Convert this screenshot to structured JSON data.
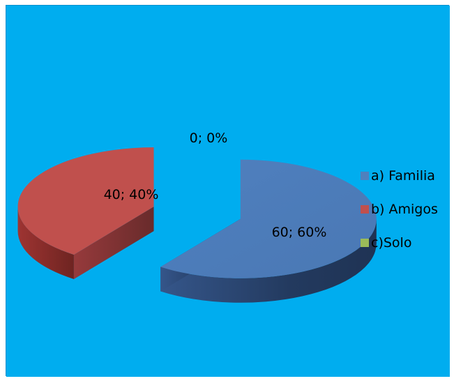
{
  "background_color": "#00adef",
  "chart_data": {
    "type": "pie",
    "style": "3d-exploded",
    "categories": [
      "a) Familia",
      "b) Amigos",
      "c)Solo"
    ],
    "values": [
      60,
      40,
      0
    ],
    "data_labels": [
      "60; 60%",
      "40; 40%",
      "0; 0%"
    ],
    "colors": [
      "#4f81bd",
      "#c0504d",
      "#9bbb59"
    ],
    "legend_position": "right",
    "title": ""
  }
}
